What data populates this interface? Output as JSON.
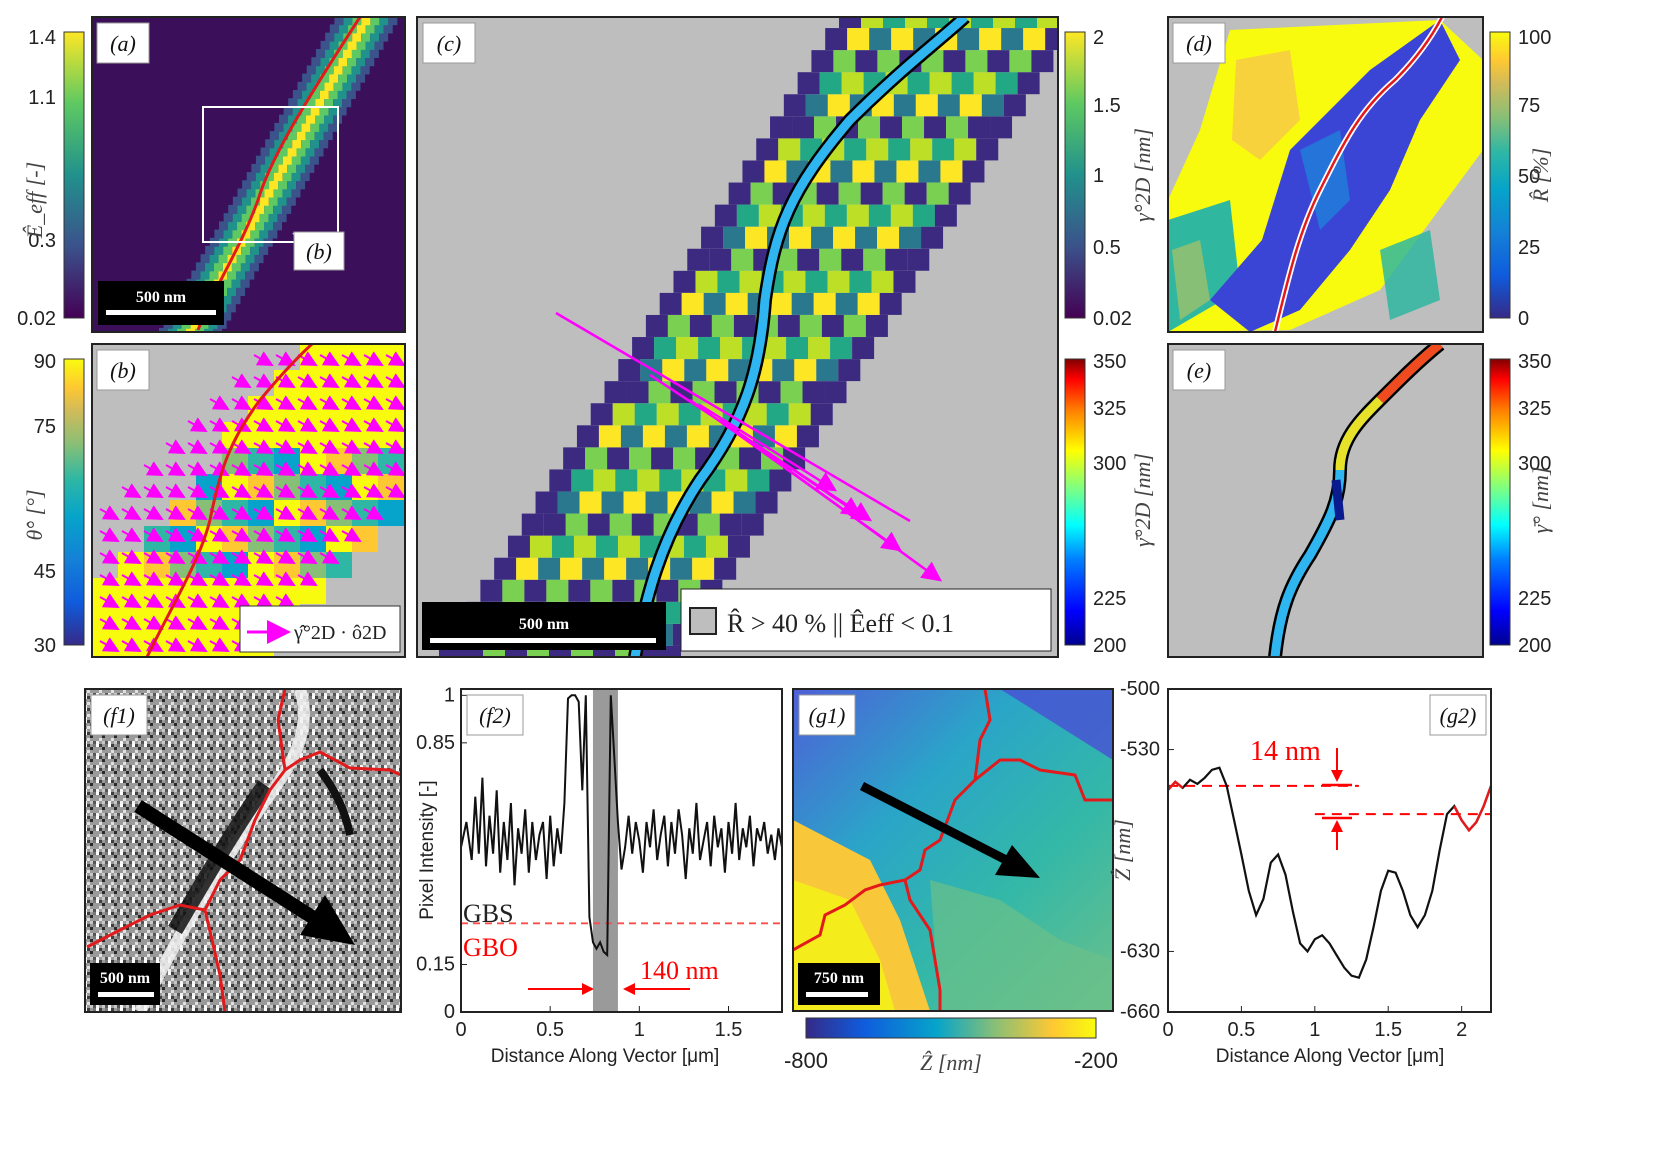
{
  "colors": {
    "map_gray": "#bebebe",
    "grain_curve": "#e31a1c",
    "vector_arrow": "#ff00ff",
    "gbo_color": "#ff0000",
    "parula": [
      "#352a87",
      "#0f5cdd",
      "#1481d6",
      "#06a4ca",
      "#2eb7a4",
      "#87bf77",
      "#d1bb59",
      "#fec832",
      "#f9fb0e"
    ],
    "jet": [
      "#00008f",
      "#0000ff",
      "#0080ff",
      "#00ffff",
      "#80ff80",
      "#ffff00",
      "#ff8000",
      "#ff0000",
      "#800000"
    ]
  },
  "panels": {
    "a": {
      "label": "(a)",
      "inset_label": "(b)",
      "scalebar": "500 nm",
      "colorbar_label": "Ê_eff [-]",
      "colorbar_ticks": [
        "1.4",
        "1.1",
        "0.3",
        "0.02"
      ]
    },
    "b": {
      "label": "(b)",
      "colorbar_label": "θ̂° [°]",
      "colorbar_ticks": [
        "90",
        "75",
        "45",
        "30"
      ],
      "legend": "γ̂°2D · ô2D"
    },
    "c": {
      "label": "(c)",
      "scalebar": "500 nm",
      "legend": "R̂ > 40 % || Êeff < 0.1",
      "colorbar1_label": "γ̂°2D [nm]",
      "colorbar1_ticks": [
        "2",
        "1.5",
        "1",
        "0.5",
        "0.02"
      ],
      "colorbar2_label": "γ̄°2D [nm]",
      "colorbar2_ticks": [
        "350",
        "325",
        "300",
        "225",
        "200"
      ]
    },
    "d": {
      "label": "(d)",
      "colorbar_label": "R̂ [%]",
      "colorbar_ticks": [
        "100",
        "75",
        "50",
        "25",
        "0"
      ]
    },
    "e": {
      "label": "(e)",
      "colorbar_label": "γ̄° [nm]",
      "colorbar_ticks": [
        "350",
        "325",
        "300",
        "225",
        "200"
      ]
    },
    "f1": {
      "label": "(f1)",
      "scalebar": "500 nm"
    },
    "f2": {
      "label": "(f2)",
      "gbs_label": "GBS",
      "gbo_label": "GBO",
      "width_annotation": "140 nm"
    },
    "g1": {
      "label": "(g1)",
      "scalebar": "750 nm",
      "colorbar_label": "Ẑ [nm]",
      "colorbar_ticks": [
        "-800",
        "-200"
      ]
    },
    "g2": {
      "label": "(g2)",
      "step_annotation": "14 nm"
    }
  },
  "chart_data": [
    {
      "type": "line",
      "panel": "f2",
      "xlabel": "Distance Along Vector [μm]",
      "ylabel": "Pixel Intensity [-]",
      "xlim": [
        0,
        1.8
      ],
      "ylim": [
        0,
        1.02
      ],
      "xticks": [
        "0",
        "0.5",
        "1",
        "1.5"
      ],
      "yticks": [
        "0",
        "0.15",
        "0.85",
        "1"
      ],
      "threshold_y": 0.28,
      "shaded_x": [
        0.74,
        0.88
      ],
      "x": [
        0,
        0.03,
        0.06,
        0.08,
        0.1,
        0.12,
        0.14,
        0.16,
        0.18,
        0.2,
        0.22,
        0.24,
        0.26,
        0.28,
        0.3,
        0.32,
        0.34,
        0.36,
        0.38,
        0.4,
        0.42,
        0.44,
        0.46,
        0.48,
        0.5,
        0.52,
        0.54,
        0.56,
        0.58,
        0.6,
        0.62,
        0.64,
        0.66,
        0.68,
        0.7,
        0.72,
        0.74,
        0.76,
        0.78,
        0.8,
        0.82,
        0.84,
        0.86,
        0.88,
        0.9,
        0.92,
        0.94,
        0.96,
        0.98,
        1.0,
        1.02,
        1.04,
        1.06,
        1.08,
        1.1,
        1.12,
        1.14,
        1.16,
        1.18,
        1.2,
        1.22,
        1.24,
        1.26,
        1.28,
        1.3,
        1.32,
        1.34,
        1.36,
        1.38,
        1.4,
        1.42,
        1.44,
        1.46,
        1.48,
        1.5,
        1.52,
        1.54,
        1.56,
        1.58,
        1.6,
        1.62,
        1.64,
        1.66,
        1.68,
        1.7,
        1.72,
        1.74,
        1.76,
        1.78,
        1.8
      ],
      "y": [
        0.52,
        0.6,
        0.48,
        0.68,
        0.5,
        0.74,
        0.46,
        0.62,
        0.5,
        0.7,
        0.44,
        0.6,
        0.48,
        0.66,
        0.4,
        0.58,
        0.5,
        0.64,
        0.44,
        0.6,
        0.48,
        0.56,
        0.6,
        0.42,
        0.62,
        0.46,
        0.58,
        0.5,
        0.66,
        0.99,
        1.0,
        1.0,
        0.98,
        0.7,
        1.0,
        0.3,
        0.22,
        0.2,
        0.22,
        0.19,
        0.18,
        1.0,
        0.8,
        0.6,
        0.45,
        0.52,
        0.62,
        0.5,
        0.6,
        0.54,
        0.44,
        0.6,
        0.52,
        0.64,
        0.48,
        0.56,
        0.62,
        0.46,
        0.6,
        0.5,
        0.64,
        0.56,
        0.42,
        0.58,
        0.5,
        0.66,
        0.48,
        0.54,
        0.6,
        0.46,
        0.62,
        0.52,
        0.58,
        0.44,
        0.6,
        0.5,
        0.66,
        0.48,
        0.58,
        0.52,
        0.62,
        0.46,
        0.58,
        0.54,
        0.6,
        0.5,
        0.56,
        0.48,
        0.58,
        0.52
      ],
      "series": [
        {
          "values": "y"
        }
      ]
    },
    {
      "type": "line",
      "panel": "g2",
      "xlabel": "Distance Along Vector [μm]",
      "ylabel": "Ẑ [nm]",
      "xlim": [
        0,
        2.2
      ],
      "ylim": [
        -660,
        -500
      ],
      "xticks": [
        "0",
        "0.5",
        "1",
        "1.5",
        "2"
      ],
      "yticks": [
        "-500",
        "-530",
        "-630",
        "-660"
      ],
      "dashed_levels": [
        -548,
        -562
      ],
      "red_segments_x": [
        [
          0,
          0.12
        ],
        [
          1.95,
          2.2
        ]
      ],
      "x": [
        0,
        0.05,
        0.1,
        0.15,
        0.2,
        0.25,
        0.3,
        0.35,
        0.4,
        0.45,
        0.5,
        0.55,
        0.6,
        0.65,
        0.7,
        0.75,
        0.8,
        0.85,
        0.9,
        0.95,
        1.0,
        1.05,
        1.1,
        1.15,
        1.2,
        1.25,
        1.3,
        1.35,
        1.4,
        1.45,
        1.5,
        1.55,
        1.6,
        1.65,
        1.7,
        1.75,
        1.8,
        1.85,
        1.9,
        1.95,
        2.0,
        2.05,
        2.1,
        2.15,
        2.2
      ],
      "y": [
        -550,
        -546,
        -549,
        -545,
        -547,
        -544,
        -540,
        -539,
        -548,
        -565,
        -582,
        -600,
        -612,
        -604,
        -586,
        -582,
        -592,
        -610,
        -626,
        -630,
        -624,
        -622,
        -626,
        -632,
        -638,
        -642,
        -643,
        -634,
        -618,
        -600,
        -590,
        -591,
        -600,
        -612,
        -618,
        -612,
        -600,
        -580,
        -562,
        -558,
        -565,
        -570,
        -566,
        -558,
        -548
      ],
      "series": [
        {
          "values": "y"
        }
      ]
    }
  ]
}
